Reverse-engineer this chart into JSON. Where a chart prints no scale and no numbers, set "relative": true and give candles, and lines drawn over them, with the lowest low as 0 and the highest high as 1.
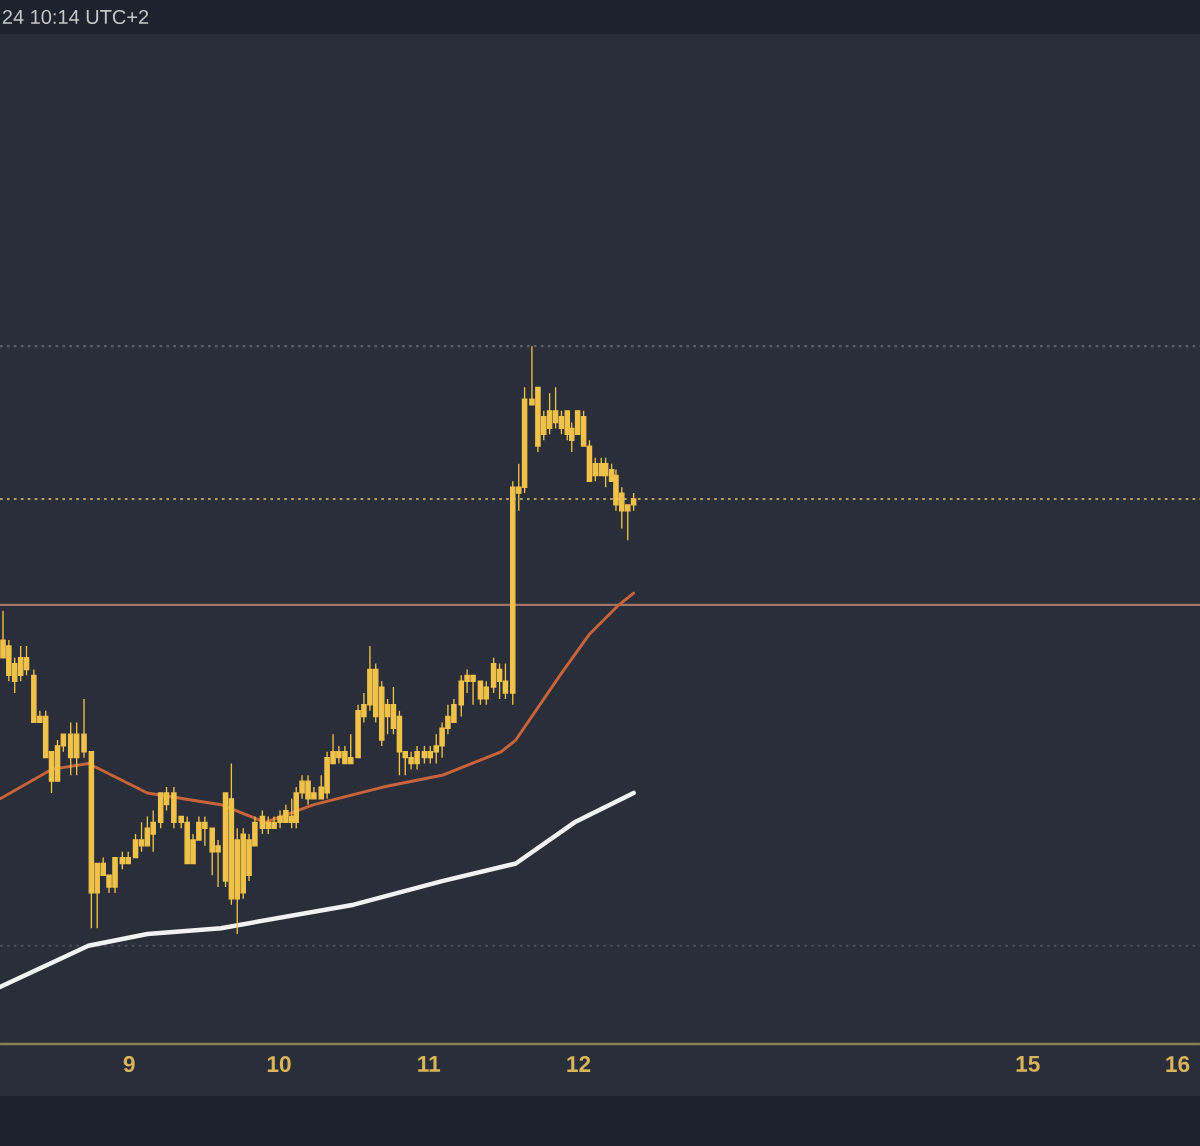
{
  "chart_data": {
    "type": "candlestick",
    "relative": true,
    "color": "#f0c24a",
    "annotations": [
      "24 10:14 UTC+2"
    ],
    "xlim": [
      8.137,
      16.15
    ],
    "xticks": [
      9,
      10,
      11,
      12,
      15,
      16
    ],
    "tick_labels": "x",
    "x": [
      8.157,
      8.196,
      8.235,
      8.275,
      8.314,
      8.363,
      8.403,
      8.442,
      8.481,
      8.521,
      8.56,
      8.609,
      8.649,
      8.698,
      8.747,
      8.786,
      8.826,
      8.865,
      8.905,
      8.954,
      8.993,
      9.042,
      9.082,
      9.121,
      9.16,
      9.21,
      9.249,
      9.298,
      9.347,
      9.387,
      9.426,
      9.465,
      9.505,
      9.554,
      9.593,
      9.643,
      9.682,
      9.721,
      9.761,
      9.8,
      9.839,
      9.889,
      9.928,
      9.967,
      10.007,
      10.046,
      10.085,
      10.115,
      10.154,
      10.194,
      10.233,
      10.282,
      10.321,
      10.361,
      10.4,
      10.44,
      10.479,
      10.528,
      10.567,
      10.607,
      10.646,
      10.686,
      10.725,
      10.764,
      10.804,
      10.843,
      10.882,
      10.922,
      10.971,
      11.01,
      11.05,
      11.089,
      11.128,
      11.168,
      11.217,
      11.256,
      11.296,
      11.345,
      11.384,
      11.433,
      11.473,
      11.512,
      11.561,
      11.601,
      11.64,
      11.689,
      11.729,
      11.768,
      11.807,
      11.847,
      11.886,
      11.925,
      11.955,
      11.994,
      12.034,
      12.073,
      12.112,
      12.152,
      12.181,
      12.221,
      12.25,
      12.289,
      12.329,
      12.368
    ],
    "ohlc": [
      [
        0.5,
        0.55,
        0.47,
        0.47
      ],
      [
        0.49,
        0.5,
        0.43,
        0.44
      ],
      [
        0.46,
        0.47,
        0.41,
        0.43
      ],
      [
        0.44,
        0.49,
        0.43,
        0.47
      ],
      [
        0.45,
        0.49,
        0.44,
        0.47
      ],
      [
        0.44,
        0.45,
        0.36,
        0.36
      ],
      [
        0.37,
        0.38,
        0.36,
        0.36
      ],
      [
        0.37,
        0.38,
        0.3,
        0.3
      ],
      [
        0.31,
        0.31,
        0.24,
        0.26
      ],
      [
        0.26,
        0.33,
        0.26,
        0.32
      ],
      [
        0.32,
        0.34,
        0.31,
        0.34
      ],
      [
        0.3,
        0.36,
        0.27,
        0.34
      ],
      [
        0.34,
        0.36,
        0.27,
        0.3
      ],
      [
        0.31,
        0.4,
        0.3,
        0.34
      ],
      [
        0.31,
        0.31,
        0.01,
        0.07
      ],
      [
        0.12,
        0.12,
        0.01,
        0.07
      ],
      [
        0.1,
        0.13,
        0.1,
        0.12
      ],
      [
        0.1,
        0.1,
        0.07,
        0.08
      ],
      [
        0.08,
        0.13,
        0.07,
        0.13
      ],
      [
        0.12,
        0.14,
        0.11,
        0.13
      ],
      [
        0.12,
        0.14,
        0.12,
        0.13
      ],
      [
        0.13,
        0.17,
        0.13,
        0.16
      ],
      [
        0.15,
        0.19,
        0.14,
        0.16
      ],
      [
        0.15,
        0.2,
        0.15,
        0.18
      ],
      [
        0.17,
        0.21,
        0.14,
        0.19
      ],
      [
        0.19,
        0.24,
        0.18,
        0.24
      ],
      [
        0.24,
        0.25,
        0.21,
        0.22
      ],
      [
        0.24,
        0.25,
        0.18,
        0.19
      ],
      [
        0.19,
        0.2,
        0.18,
        0.2
      ],
      [
        0.19,
        0.2,
        0.12,
        0.12
      ],
      [
        0.12,
        0.17,
        0.12,
        0.16
      ],
      [
        0.16,
        0.2,
        0.16,
        0.19
      ],
      [
        0.19,
        0.2,
        0.15,
        0.18
      ],
      [
        0.18,
        0.18,
        0.1,
        0.14
      ],
      [
        0.15,
        0.16,
        0.08,
        0.14
      ],
      [
        0.24,
        0.24,
        0.08,
        0.09
      ],
      [
        0.23,
        0.29,
        0.05,
        0.06
      ],
      [
        0.06,
        0.18,
        0.0,
        0.16
      ],
      [
        0.07,
        0.18,
        0.06,
        0.17
      ],
      [
        0.1,
        0.17,
        0.09,
        0.16
      ],
      [
        0.15,
        0.2,
        0.15,
        0.19
      ],
      [
        0.18,
        0.21,
        0.17,
        0.2
      ],
      [
        0.18,
        0.2,
        0.17,
        0.19
      ],
      [
        0.18,
        0.2,
        0.18,
        0.19
      ],
      [
        0.19,
        0.21,
        0.18,
        0.2
      ],
      [
        0.19,
        0.22,
        0.19,
        0.21
      ],
      [
        0.19,
        0.23,
        0.18,
        0.2
      ],
      [
        0.19,
        0.25,
        0.18,
        0.24
      ],
      [
        0.24,
        0.27,
        0.23,
        0.26
      ],
      [
        0.26,
        0.27,
        0.22,
        0.23
      ],
      [
        0.23,
        0.25,
        0.23,
        0.24
      ],
      [
        0.23,
        0.27,
        0.23,
        0.25
      ],
      [
        0.24,
        0.31,
        0.23,
        0.3
      ],
      [
        0.29,
        0.34,
        0.29,
        0.31
      ],
      [
        0.3,
        0.32,
        0.29,
        0.31
      ],
      [
        0.31,
        0.32,
        0.29,
        0.29
      ],
      [
        0.29,
        0.34,
        0.29,
        0.3
      ],
      [
        0.3,
        0.39,
        0.3,
        0.38
      ],
      [
        0.37,
        0.41,
        0.36,
        0.39
      ],
      [
        0.39,
        0.49,
        0.38,
        0.45
      ],
      [
        0.45,
        0.46,
        0.36,
        0.37
      ],
      [
        0.42,
        0.43,
        0.32,
        0.33
      ],
      [
        0.39,
        0.4,
        0.34,
        0.37
      ],
      [
        0.39,
        0.42,
        0.34,
        0.35
      ],
      [
        0.37,
        0.38,
        0.27,
        0.31
      ],
      [
        0.31,
        0.31,
        0.27,
        0.3
      ],
      [
        0.3,
        0.31,
        0.28,
        0.29
      ],
      [
        0.29,
        0.32,
        0.28,
        0.31
      ],
      [
        0.3,
        0.32,
        0.29,
        0.31
      ],
      [
        0.3,
        0.32,
        0.29,
        0.31
      ],
      [
        0.31,
        0.34,
        0.29,
        0.32
      ],
      [
        0.32,
        0.36,
        0.3,
        0.35
      ],
      [
        0.35,
        0.39,
        0.34,
        0.37
      ],
      [
        0.36,
        0.4,
        0.36,
        0.39
      ],
      [
        0.39,
        0.44,
        0.37,
        0.43
      ],
      [
        0.43,
        0.45,
        0.41,
        0.44
      ],
      [
        0.44,
        0.44,
        0.39,
        0.43
      ],
      [
        0.43,
        0.43,
        0.39,
        0.4
      ],
      [
        0.42,
        0.43,
        0.39,
        0.4
      ],
      [
        0.42,
        0.47,
        0.41,
        0.46
      ],
      [
        0.45,
        0.46,
        0.4,
        0.43
      ],
      [
        0.43,
        0.46,
        0.4,
        0.41
      ],
      [
        0.41,
        0.77,
        0.39,
        0.76
      ],
      [
        0.75,
        0.8,
        0.72,
        0.76
      ],
      [
        0.76,
        0.93,
        0.75,
        0.91
      ],
      [
        0.91,
        1.0,
        0.9,
        0.9
      ],
      [
        0.93,
        0.93,
        0.82,
        0.83
      ],
      [
        0.85,
        0.89,
        0.84,
        0.88
      ],
      [
        0.86,
        0.92,
        0.85,
        0.89
      ],
      [
        0.87,
        0.93,
        0.86,
        0.89
      ],
      [
        0.88,
        0.89,
        0.85,
        0.86
      ],
      [
        0.85,
        0.89,
        0.84,
        0.89
      ],
      [
        0.86,
        0.87,
        0.82,
        0.84
      ],
      [
        0.85,
        0.89,
        0.85,
        0.89
      ],
      [
        0.88,
        0.89,
        0.83,
        0.83
      ],
      [
        0.83,
        0.84,
        0.77,
        0.77
      ],
      [
        0.78,
        0.81,
        0.77,
        0.8
      ],
      [
        0.78,
        0.81,
        0.78,
        0.8
      ],
      [
        0.8,
        0.81,
        0.76,
        0.78
      ],
      [
        0.79,
        0.8,
        0.77,
        0.77
      ],
      [
        0.78,
        0.79,
        0.72,
        0.73
      ],
      [
        0.75,
        0.76,
        0.69,
        0.72
      ],
      [
        0.72,
        0.73,
        0.67,
        0.73
      ],
      [
        0.73,
        0.75,
        0.72,
        0.74
      ]
    ],
    "series": [
      {
        "type": "line",
        "color": "#c8643c",
        "x": [
          8.137,
          8.481,
          8.727,
          9.121,
          9.613,
          9.908,
          10.233,
          10.695,
          11.089,
          11.483,
          11.581,
          11.876,
          12.073,
          12.27,
          12.368
        ],
        "values": [
          0.23,
          0.28,
          0.29,
          0.24,
          0.22,
          0.19,
          0.22,
          0.25,
          0.27,
          0.31,
          0.33,
          0.44,
          0.51,
          0.56,
          0.58
        ]
      },
      {
        "type": "line",
        "color": "#f2f2f2",
        "x": [
          8.137,
          8.727,
          9.121,
          9.613,
          10.499,
          11.089,
          11.581,
          11.974,
          12.368
        ],
        "values": [
          -0.09,
          -0.02,
          0.0,
          0.01,
          0.05,
          0.09,
          0.12,
          0.19,
          0.24
        ]
      }
    ],
    "ref_lines": [
      {
        "axis": "y",
        "value": 1.0,
        "color": "#5b5f6b",
        "line_style": "dotted"
      },
      {
        "axis": "y",
        "value": 0.74,
        "color": "#b8a060",
        "line_style": "dotted"
      },
      {
        "axis": "y",
        "value": 0.56,
        "color": "#a07565",
        "line_style": "solid"
      },
      {
        "axis": "y",
        "value": -0.02,
        "color": "#4a4e58",
        "line_style": "dotted"
      }
    ]
  }
}
